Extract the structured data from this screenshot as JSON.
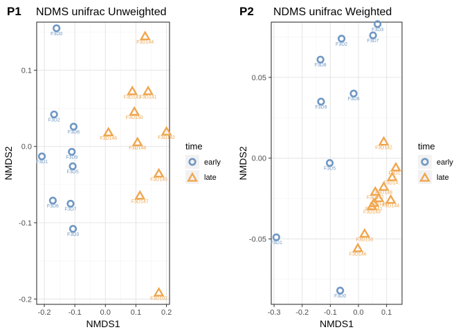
{
  "colors": {
    "early": "#6f97c3",
    "late": "#f0a64e",
    "grid_major": "#e6e6e6",
    "grid_minor": "#f2f2f2",
    "axis_text": "#4d4d4d",
    "title_text": "#000000"
  },
  "legend": {
    "title": "time",
    "entries": [
      {
        "label": "early",
        "group": "early",
        "shape": "circle"
      },
      {
        "label": "late",
        "group": "late",
        "shape": "triangle"
      }
    ]
  },
  "chart_data": [
    {
      "type": "scatter",
      "tag": "P1",
      "title": "NDMS unifrac Unweighted",
      "xlabel": "NMDS1",
      "ylabel": "NMDS2",
      "xlim": [
        -0.225,
        0.21
      ],
      "ylim": [
        -0.207,
        0.163
      ],
      "xticks": [
        -0.2,
        -0.1,
        0.0,
        0.1,
        0.2
      ],
      "xtick_labels": [
        "-0.2",
        "-0.1",
        "0.0",
        "0.1",
        "0.2"
      ],
      "yticks": [
        -0.2,
        -0.1,
        0.0,
        0.1
      ],
      "ytick_labels": [
        "-0.2",
        "-0.1",
        "0.0",
        "0.1"
      ],
      "grid": true,
      "legend_position": "right",
      "points": [
        {
          "label": "F3D0",
          "group": "early",
          "x": -0.16,
          "y": 0.155
        },
        {
          "label": "F3D2",
          "group": "early",
          "x": -0.168,
          "y": 0.042
        },
        {
          "label": "F3D8",
          "group": "early",
          "x": -0.104,
          "y": 0.026
        },
        {
          "label": "F3D9",
          "group": "early",
          "x": -0.11,
          "y": -0.007
        },
        {
          "label": "F3D1",
          "group": "early",
          "x": -0.208,
          "y": -0.013
        },
        {
          "label": "F3D5",
          "group": "early",
          "x": -0.107,
          "y": -0.026
        },
        {
          "label": "F3D6",
          "group": "early",
          "x": -0.172,
          "y": -0.071
        },
        {
          "label": "F3D7",
          "group": "early",
          "x": -0.114,
          "y": -0.075
        },
        {
          "label": "F3D3",
          "group": "early",
          "x": -0.106,
          "y": -0.108
        },
        {
          "label": "F3D144",
          "group": "late",
          "x": 0.13,
          "y": 0.144
        },
        {
          "label": "F3D143",
          "group": "late",
          "x": 0.088,
          "y": 0.072
        },
        {
          "label": "F3D141",
          "group": "late",
          "x": 0.14,
          "y": 0.072
        },
        {
          "label": "F3D150",
          "group": "late",
          "x": 0.095,
          "y": 0.045
        },
        {
          "label": "F3D146",
          "group": "late",
          "x": 0.01,
          "y": 0.018
        },
        {
          "label": "F3D148",
          "group": "late",
          "x": 0.105,
          "y": 0.005
        },
        {
          "label": "F3D142",
          "group": "late",
          "x": 0.2,
          "y": 0.019
        },
        {
          "label": "F3D145",
          "group": "late",
          "x": 0.175,
          "y": -0.036
        },
        {
          "label": "F3D147",
          "group": "late",
          "x": 0.113,
          "y": -0.065
        },
        {
          "label": "F3D102",
          "group": "late",
          "x": 0.175,
          "y": -0.192
        }
      ]
    },
    {
      "type": "scatter",
      "tag": "P2",
      "title": "NDMS unifrac Weighted",
      "xlabel": "NMDS1",
      "ylabel": "NMDS2",
      "xlim": [
        -0.31,
        0.155
      ],
      "ylim": [
        -0.0905,
        0.0842
      ],
      "xticks": [
        -0.3,
        -0.2,
        -0.1,
        0.0,
        0.1
      ],
      "xtick_labels": [
        "-0.3",
        "-0.2",
        "-0.1",
        "0.0",
        "0.1"
      ],
      "yticks": [
        -0.05,
        0.0,
        0.05
      ],
      "ytick_labels": [
        "-0.05",
        "0.00",
        "0.05"
      ],
      "grid": true,
      "legend_position": "right",
      "points": [
        {
          "label": "F3D3",
          "group": "early",
          "x": 0.068,
          "y": 0.083
        },
        {
          "label": "F3D7",
          "group": "early",
          "x": 0.052,
          "y": 0.076
        },
        {
          "label": "F3D2",
          "group": "early",
          "x": -0.06,
          "y": 0.074
        },
        {
          "label": "F3D8",
          "group": "early",
          "x": -0.135,
          "y": 0.061
        },
        {
          "label": "F3D6",
          "group": "early",
          "x": -0.017,
          "y": 0.04
        },
        {
          "label": "F3D9",
          "group": "early",
          "x": -0.133,
          "y": 0.035
        },
        {
          "label": "F3D5",
          "group": "early",
          "x": -0.102,
          "y": -0.003
        },
        {
          "label": "F3D1",
          "group": "early",
          "x": -0.292,
          "y": -0.049
        },
        {
          "label": "F3D0",
          "group": "early",
          "x": -0.065,
          "y": -0.082
        },
        {
          "label": "F3D142",
          "group": "late",
          "x": 0.09,
          "y": 0.01
        },
        {
          "label": "F3D1..",
          "group": "late",
          "x": 0.133,
          "y": -0.006
        },
        {
          "label": "F3D14..",
          "group": "late",
          "x": 0.12,
          "y": -0.012
        },
        {
          "label": "F3D148",
          "group": "late",
          "x": 0.09,
          "y": -0.018
        },
        {
          "label": "F3D147",
          "group": "late",
          "x": 0.06,
          "y": -0.021
        },
        {
          "label": "F3D145",
          "group": "late",
          "x": 0.072,
          "y": -0.025
        },
        {
          "label": "F3D144",
          "group": "late",
          "x": 0.115,
          "y": -0.026
        },
        {
          "label": "F3D141",
          "group": "late",
          "x": 0.055,
          "y": -0.028
        },
        {
          "label": "F3D149",
          "group": "late",
          "x": 0.048,
          "y": -0.03
        },
        {
          "label": "F3D150",
          "group": "late",
          "x": 0.022,
          "y": -0.047
        },
        {
          "label": "F3D146",
          "group": "late",
          "x": -0.002,
          "y": -0.056
        }
      ]
    }
  ]
}
